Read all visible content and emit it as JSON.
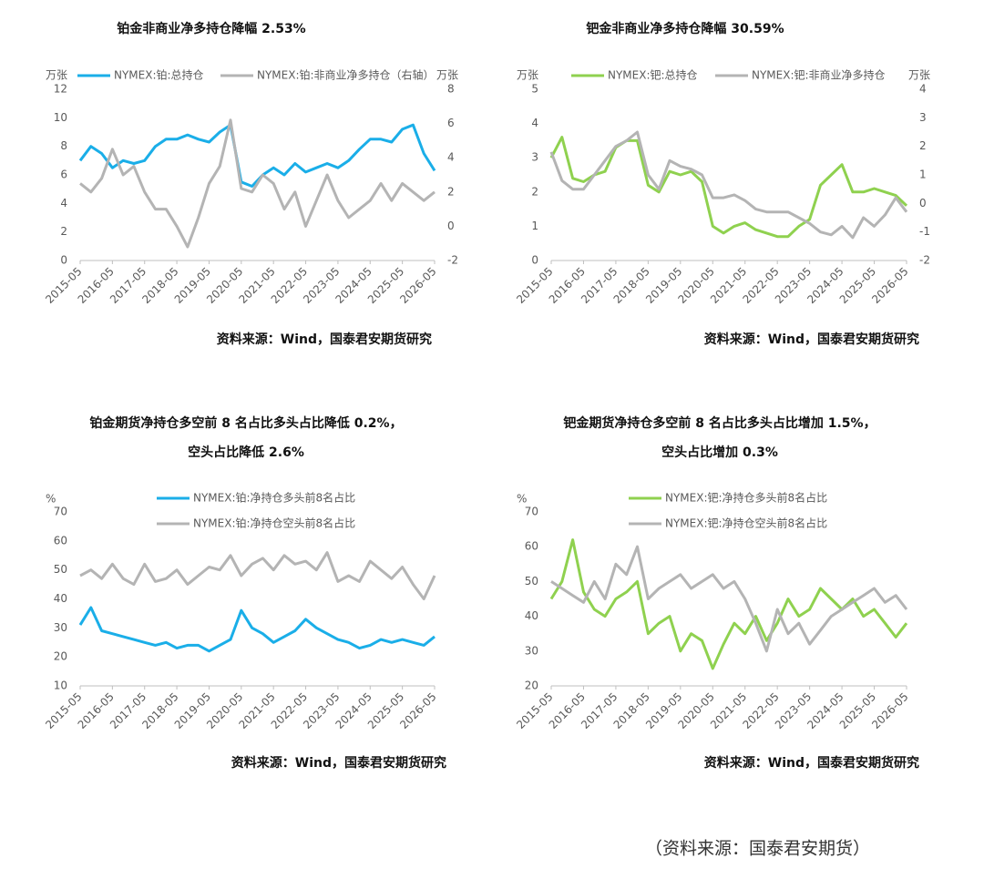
{
  "chart_data": [
    {
      "type": "line",
      "title": [
        "铂金非商业净多持仓降幅 2.53%"
      ],
      "y_unit": "万张",
      "y2_unit": "万张",
      "x": [
        "2015-05",
        "2015-09",
        "2016-01",
        "2016-05",
        "2016-09",
        "2017-01",
        "2017-05",
        "2017-09",
        "2018-01",
        "2018-05",
        "2018-09",
        "2019-01",
        "2019-05",
        "2019-09",
        "2020-01",
        "2020-05",
        "2020-09",
        "2021-01",
        "2021-05",
        "2021-09",
        "2022-01",
        "2022-05",
        "2022-09",
        "2023-01",
        "2023-05",
        "2023-09",
        "2024-01",
        "2024-05",
        "2024-09",
        "2025-01",
        "2025-05",
        "2025-09",
        "2026-01",
        "2026-05"
      ],
      "xlim": [
        "2015-05",
        "2026-05"
      ],
      "xticks": [
        "2015-05",
        "2016-05",
        "2017-05",
        "2018-05",
        "2019-05",
        "2020-05",
        "2021-05",
        "2022-05",
        "2023-05",
        "2024-05",
        "2025-05",
        "2026-05"
      ],
      "ylim": [
        0,
        12
      ],
      "yticks": [
        0,
        2,
        4,
        6,
        8,
        10,
        12
      ],
      "y2lim": [
        -2,
        8
      ],
      "y2ticks": [
        -2,
        0,
        2,
        4,
        6,
        8
      ],
      "series": [
        {
          "name": "NYMEX:铂:总持仓",
          "color": "#1aaee8",
          "values": [
            7,
            8,
            7.5,
            6.5,
            7,
            6.8,
            7,
            8,
            8.5,
            8.5,
            8.8,
            8.5,
            8.3,
            9,
            9.5,
            5.5,
            5.2,
            6,
            6.5,
            6,
            6.8,
            6.2,
            6.5,
            6.8,
            6.5,
            7,
            7.8,
            8.5,
            8.5,
            8.3,
            9.2,
            9.5,
            7.5,
            6.3
          ]
        },
        {
          "name": "NYMEX:铂:非商业净多持仓（右轴）",
          "color": "#b4b4b4",
          "axis": "y2",
          "values": [
            2.5,
            2,
            2.8,
            4.5,
            3,
            3.5,
            2,
            1,
            1,
            0,
            -1.2,
            0.5,
            2.5,
            3.5,
            6.2,
            2.2,
            2,
            3,
            2.5,
            1,
            2,
            0,
            1.5,
            3,
            1.5,
            0.5,
            1,
            1.5,
            2.5,
            1.5,
            2.5,
            2,
            1.5,
            2
          ]
        }
      ],
      "source": "资料来源：Wind，国泰君安期货研究"
    },
    {
      "type": "line",
      "title": [
        "钯金非商业净多持仓降幅 30.59%"
      ],
      "y_unit": "万张",
      "y2_unit": "万张",
      "x": [
        "2015-05",
        "2015-09",
        "2016-01",
        "2016-05",
        "2016-09",
        "2017-01",
        "2017-05",
        "2017-09",
        "2018-01",
        "2018-05",
        "2018-09",
        "2019-01",
        "2019-05",
        "2019-09",
        "2020-01",
        "2020-05",
        "2020-09",
        "2021-01",
        "2021-05",
        "2021-09",
        "2022-01",
        "2022-05",
        "2022-09",
        "2023-01",
        "2023-05",
        "2023-09",
        "2024-01",
        "2024-05",
        "2024-09",
        "2025-01",
        "2025-05",
        "2025-09",
        "2026-01",
        "2026-05"
      ],
      "xlim": [
        "2015-05",
        "2026-05"
      ],
      "xticks": [
        "2015-05",
        "2016-05",
        "2017-05",
        "2018-05",
        "2019-05",
        "2020-05",
        "2021-05",
        "2022-05",
        "2023-05",
        "2024-05",
        "2025-05",
        "2026-05"
      ],
      "ylim": [
        0,
        5
      ],
      "yticks": [
        0,
        1,
        2,
        3,
        4,
        5
      ],
      "y2lim": [
        -2,
        4
      ],
      "y2ticks": [
        -2,
        -1,
        0,
        1,
        2,
        3,
        4
      ],
      "series": [
        {
          "name": "NYMEX:钯:总持仓",
          "color": "#8fd14f",
          "values": [
            3,
            3.6,
            2.4,
            2.3,
            2.5,
            2.6,
            3.3,
            3.5,
            3.5,
            2.2,
            2,
            2.6,
            2.5,
            2.6,
            2.3,
            1,
            0.8,
            1,
            1.1,
            0.9,
            0.8,
            0.7,
            0.7,
            1,
            1.2,
            2.2,
            2.5,
            2.8,
            2,
            2,
            2.1,
            2,
            1.9,
            1.6
          ]
        },
        {
          "name": "NYMEX:钯:非商业净多持仓",
          "color": "#b4b4b4",
          "axis": "y2",
          "values": [
            1.8,
            0.8,
            0.5,
            0.5,
            1,
            1.5,
            2,
            2.2,
            2.5,
            1,
            0.5,
            1.5,
            1.3,
            1.2,
            1,
            0.2,
            0.2,
            0.3,
            0.1,
            -0.2,
            -0.3,
            -0.3,
            -0.3,
            -0.5,
            -0.7,
            -1,
            -1.1,
            -0.8,
            -1.2,
            -0.5,
            -0.8,
            -0.4,
            0.2,
            -0.3
          ]
        }
      ],
      "source": "资料来源：Wind，国泰君安期货研究"
    },
    {
      "type": "line",
      "title": [
        "铂金期货净持仓多空前 8 名占比多头占比降低 0.2%，",
        "空头占比降低 2.6%"
      ],
      "y_unit": "%",
      "x": [
        "2015-05",
        "2015-09",
        "2016-01",
        "2016-05",
        "2016-09",
        "2017-01",
        "2017-05",
        "2017-09",
        "2018-01",
        "2018-05",
        "2018-09",
        "2019-01",
        "2019-05",
        "2019-09",
        "2020-01",
        "2020-05",
        "2020-09",
        "2021-01",
        "2021-05",
        "2021-09",
        "2022-01",
        "2022-05",
        "2022-09",
        "2023-01",
        "2023-05",
        "2023-09",
        "2024-01",
        "2024-05",
        "2024-09",
        "2025-01",
        "2025-05",
        "2025-09",
        "2026-01",
        "2026-05"
      ],
      "xlim": [
        "2015-05",
        "2026-05"
      ],
      "xticks": [
        "2015-05",
        "2016-05",
        "2017-05",
        "2018-05",
        "2019-05",
        "2020-05",
        "2021-05",
        "2022-05",
        "2023-05",
        "2024-05",
        "2025-05",
        "2026-05"
      ],
      "ylim": [
        10,
        70
      ],
      "yticks": [
        10,
        20,
        30,
        40,
        50,
        60,
        70
      ],
      "series": [
        {
          "name": "NYMEX:铂:净持仓多头前8名占比",
          "color": "#1aaee8",
          "values": [
            31,
            37,
            29,
            28,
            27,
            26,
            25,
            24,
            25,
            23,
            24,
            24,
            22,
            24,
            26,
            36,
            30,
            28,
            25,
            27,
            29,
            33,
            30,
            28,
            26,
            25,
            23,
            24,
            26,
            25,
            26,
            25,
            24,
            27
          ]
        },
        {
          "name": "NYMEX:铂:净持仓空头前8名占比",
          "color": "#b4b4b4",
          "values": [
            48,
            50,
            47,
            52,
            47,
            45,
            52,
            46,
            47,
            50,
            45,
            48,
            51,
            50,
            55,
            48,
            52,
            54,
            50,
            55,
            52,
            53,
            50,
            56,
            46,
            48,
            46,
            53,
            50,
            47,
            51,
            45,
            40,
            48
          ]
        }
      ],
      "source": "资料来源：Wind，国泰君安期货研究"
    },
    {
      "type": "line",
      "title": [
        "钯金期货净持仓多空前 8 名占比多头占比增加 1.5%，",
        "空头占比增加 0.3%"
      ],
      "y_unit": "%",
      "x": [
        "2015-05",
        "2015-09",
        "2016-01",
        "2016-05",
        "2016-09",
        "2017-01",
        "2017-05",
        "2017-09",
        "2018-01",
        "2018-05",
        "2018-09",
        "2019-01",
        "2019-05",
        "2019-09",
        "2020-01",
        "2020-05",
        "2020-09",
        "2021-01",
        "2021-05",
        "2021-09",
        "2022-01",
        "2022-05",
        "2022-09",
        "2023-01",
        "2023-05",
        "2023-09",
        "2024-01",
        "2024-05",
        "2024-09",
        "2025-01",
        "2025-05",
        "2025-09",
        "2026-01",
        "2026-05"
      ],
      "xlim": [
        "2015-05",
        "2026-05"
      ],
      "xticks": [
        "2015-05",
        "2016-05",
        "2017-05",
        "2018-05",
        "2019-05",
        "2020-05",
        "2021-05",
        "2022-05",
        "2023-05",
        "2024-05",
        "2025-05",
        "2026-05"
      ],
      "ylim": [
        20,
        70
      ],
      "yticks": [
        20,
        30,
        40,
        50,
        60,
        70
      ],
      "series": [
        {
          "name": "NYMEX:钯:净持仓多头前8名占比",
          "color": "#8fd14f",
          "values": [
            45,
            50,
            62,
            47,
            42,
            40,
            45,
            47,
            50,
            35,
            38,
            40,
            30,
            35,
            33,
            25,
            32,
            38,
            35,
            40,
            33,
            38,
            45,
            40,
            42,
            48,
            45,
            42,
            45,
            40,
            42,
            38,
            34,
            38
          ]
        },
        {
          "name": "NYMEX:钯:净持仓空头前8名占比",
          "color": "#b4b4b4",
          "values": [
            50,
            48,
            46,
            44,
            50,
            45,
            55,
            52,
            60,
            45,
            48,
            50,
            52,
            48,
            50,
            52,
            48,
            50,
            45,
            38,
            30,
            42,
            35,
            38,
            32,
            36,
            40,
            42,
            44,
            46,
            48,
            44,
            46,
            42
          ]
        }
      ],
      "source": "资料来源：Wind，国泰君安期货研究"
    }
  ],
  "footer": "（资料来源：国泰君安期货）"
}
